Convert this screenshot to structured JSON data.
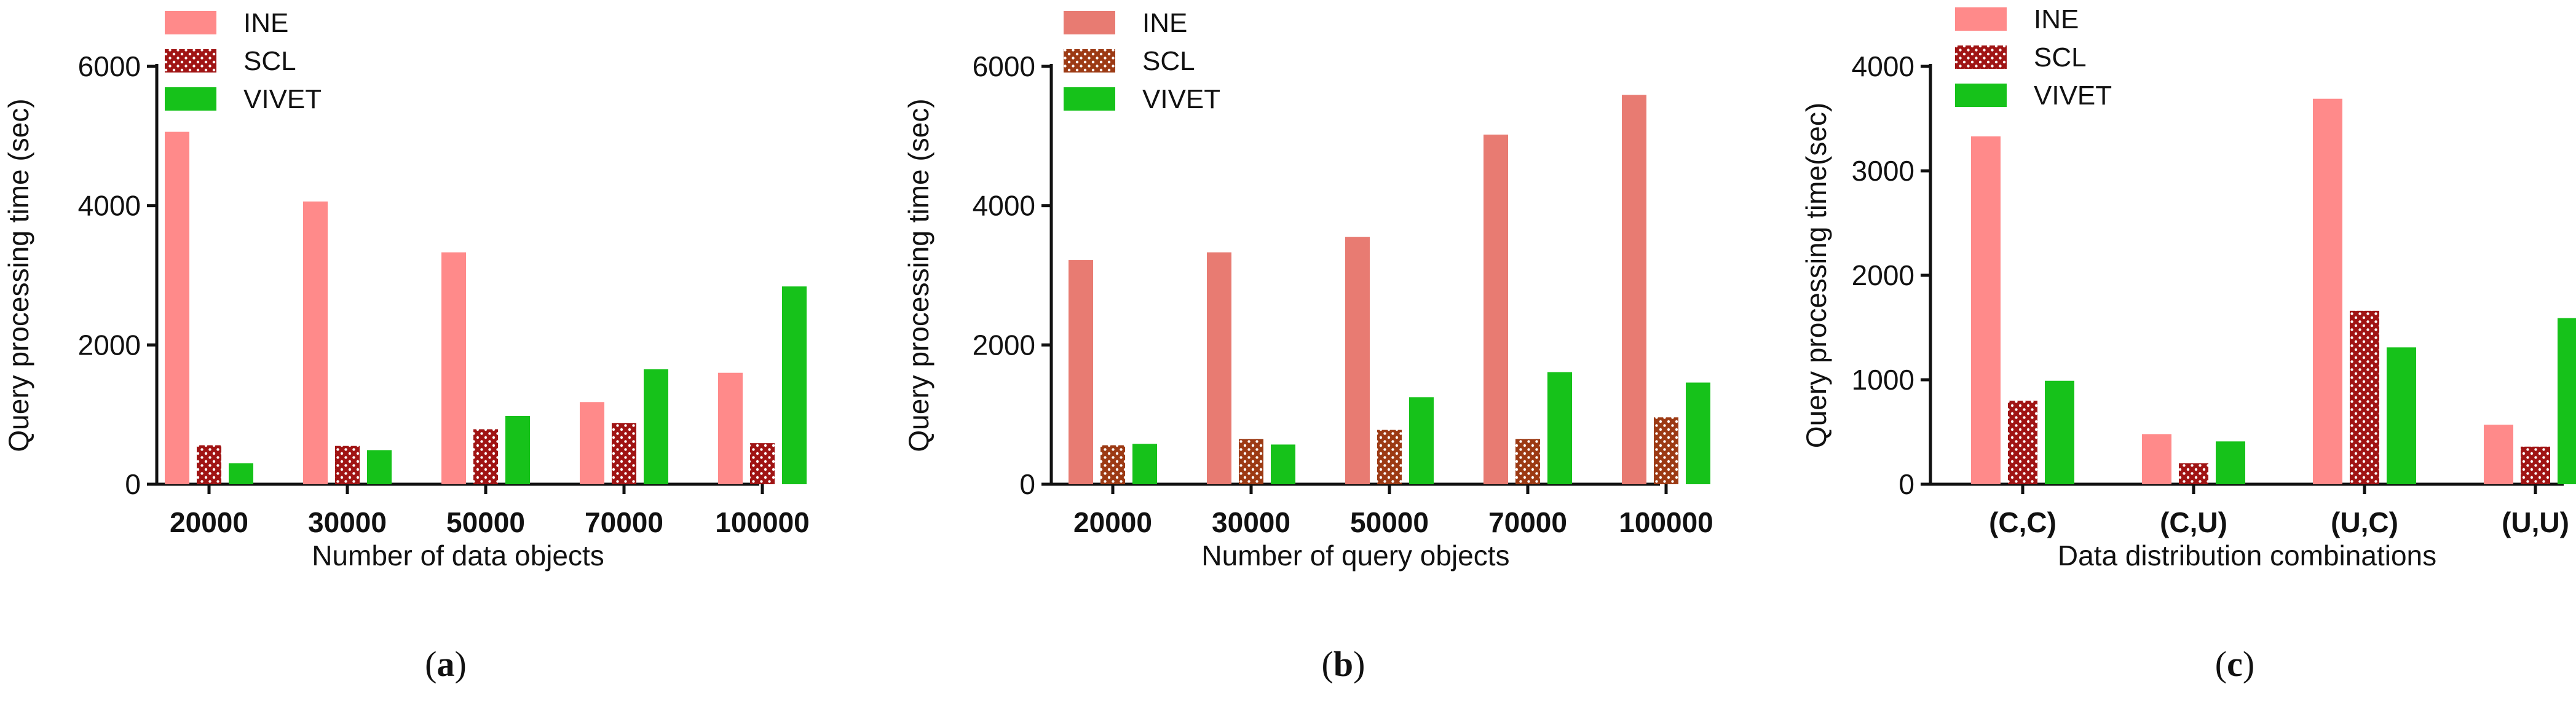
{
  "chart_data": [
    {
      "type": "bar",
      "panel_label": "(a)",
      "title": "",
      "xlabel": "Number of data objects",
      "ylabel": "Query processing time (sec)",
      "ylim": [
        0,
        6000
      ],
      "yticks": [
        0,
        2000,
        4000,
        6000
      ],
      "yticks_text": [
        "0",
        "2000",
        "4000",
        "6000"
      ],
      "categories": [
        "20000",
        "30000",
        "50000",
        "70000",
        "100000"
      ],
      "legend_position": "top-left",
      "series": [
        {
          "name": "INE",
          "color": "#ff8a8a",
          "pattern": "solid",
          "values": [
            5060,
            4060,
            3330,
            1180,
            1600
          ]
        },
        {
          "name": "SCL",
          "color": "#a01414",
          "pattern": "dots",
          "values": [
            560,
            550,
            790,
            880,
            590
          ]
        },
        {
          "name": "VIVET",
          "color": "#16c21a",
          "pattern": "solid",
          "values": [
            300,
            490,
            980,
            1650,
            2840
          ]
        }
      ]
    },
    {
      "type": "bar",
      "panel_label": "(b)",
      "title": "",
      "xlabel": "Number of query objects",
      "ylabel": "Query processing time (sec)",
      "ylim": [
        0,
        6000
      ],
      "yticks": [
        0,
        2000,
        4000,
        6000
      ],
      "yticks_text": [
        "0",
        "2000",
        "4000",
        "6000"
      ],
      "categories": [
        "20000",
        "30000",
        "50000",
        "70000",
        "100000"
      ],
      "legend_position": "top-left",
      "series": [
        {
          "name": "INE",
          "color": "#e87b72",
          "pattern": "solid",
          "values": [
            3220,
            3330,
            3550,
            5020,
            5590
          ]
        },
        {
          "name": "SCL",
          "color": "#9c3a14",
          "pattern": "dots",
          "values": [
            560,
            650,
            780,
            650,
            960
          ]
        },
        {
          "name": "VIVET",
          "color": "#16c21a",
          "pattern": "solid",
          "values": [
            580,
            570,
            1250,
            1610,
            1460
          ]
        }
      ]
    },
    {
      "type": "bar",
      "panel_label": "(c)",
      "title": "",
      "xlabel": "Data distribution combinations",
      "ylabel": "Query processing time(sec)",
      "ylim": [
        0,
        4000
      ],
      "yticks": [
        0,
        1000,
        2000,
        3000,
        4000
      ],
      "yticks_text": [
        "0",
        "1000",
        "2000",
        "3000",
        "4000"
      ],
      "categories": [
        "(C,C)",
        "(C,U)",
        "(U,C)",
        "(U,U)"
      ],
      "legend_position": "top-left",
      "series": [
        {
          "name": "INE",
          "color": "#ff8a8a",
          "pattern": "solid",
          "values": [
            3330,
            480,
            3690,
            570
          ]
        },
        {
          "name": "SCL",
          "color": "#a01414",
          "pattern": "dots",
          "values": [
            800,
            200,
            1660,
            360
          ]
        },
        {
          "name": "VIVET",
          "color": "#16c21a",
          "pattern": "solid",
          "values": [
            990,
            410,
            1310,
            1590
          ]
        }
      ]
    }
  ]
}
